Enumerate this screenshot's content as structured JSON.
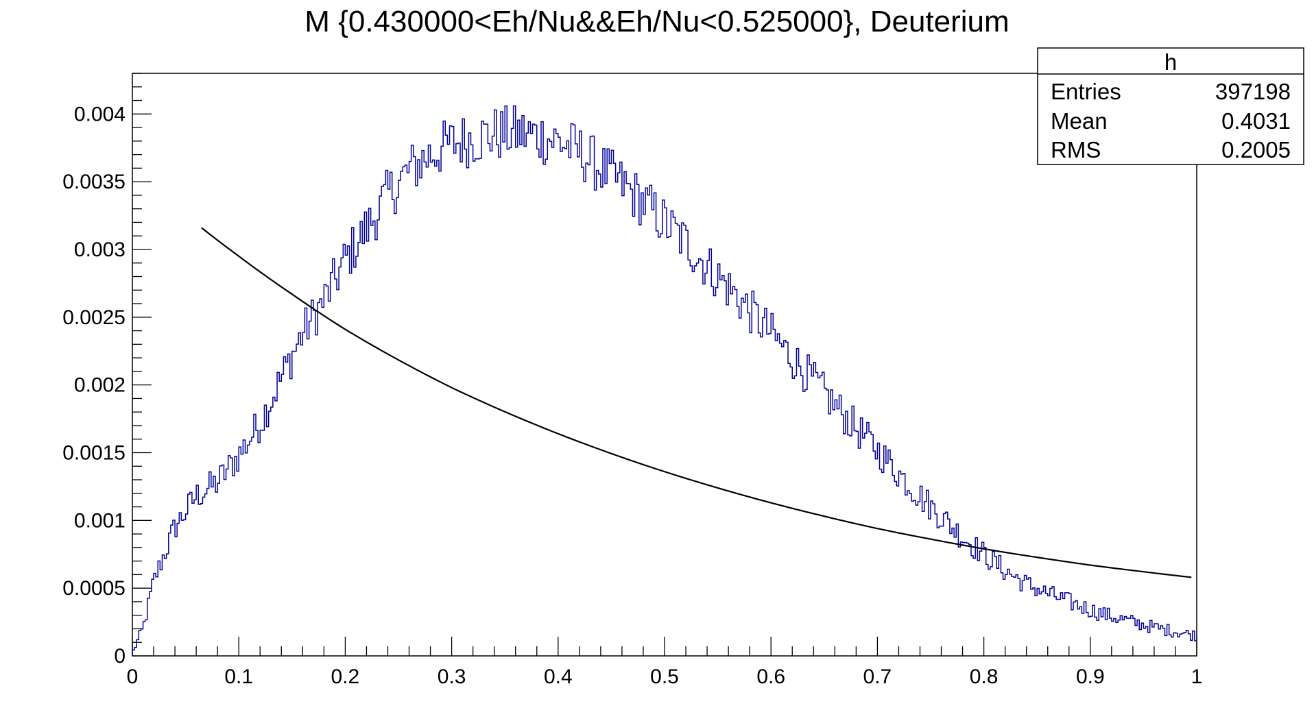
{
  "chart_data": {
    "type": "line",
    "title": "M {0.430000<Eh/Nu&&Eh/Nu<0.525000}, Deuterium",
    "xlabel": "",
    "ylabel": "",
    "xlim": [
      0,
      1
    ],
    "ylim": [
      0,
      0.0043
    ],
    "grid": false,
    "x_ticks": [
      "0",
      "0.1",
      "0.2",
      "0.3",
      "0.4",
      "0.5",
      "0.6",
      "0.7",
      "0.8",
      "0.9",
      "1"
    ],
    "y_ticks": [
      "0",
      "0.0005",
      "0.001",
      "0.0015",
      "0.002",
      "0.0025",
      "0.003",
      "0.0035",
      "0.004"
    ],
    "x_tick_values": [
      0,
      0.1,
      0.2,
      0.3,
      0.4,
      0.5,
      0.6,
      0.7,
      0.8,
      0.9,
      1
    ],
    "y_tick_values": [
      0,
      0.0005,
      0.001,
      0.0015,
      0.002,
      0.0025,
      0.003,
      0.0035,
      0.004
    ],
    "stats_box": {
      "name": "h",
      "rows": [
        {
          "label": "Entries",
          "value": "397198"
        },
        {
          "label": "Mean",
          "value": "0.4031"
        },
        {
          "label": "RMS",
          "value": "0.2005"
        }
      ]
    },
    "histogram_envelope": {
      "bins": 500,
      "x": [
        0,
        0.01,
        0.02,
        0.04,
        0.06,
        0.08,
        0.1,
        0.12,
        0.14,
        0.16,
        0.18,
        0.2,
        0.22,
        0.24,
        0.26,
        0.28,
        0.3,
        0.32,
        0.34,
        0.36,
        0.38,
        0.4,
        0.42,
        0.44,
        0.46,
        0.48,
        0.5,
        0.52,
        0.54,
        0.56,
        0.58,
        0.6,
        0.62,
        0.64,
        0.66,
        0.68,
        0.7,
        0.72,
        0.74,
        0.76,
        0.78,
        0.8,
        0.82,
        0.84,
        0.86,
        0.88,
        0.9,
        0.92,
        0.94,
        0.96,
        0.98,
        1.0
      ],
      "y": [
        2e-05,
        0.0002,
        0.00055,
        0.00095,
        0.00118,
        0.00128,
        0.00148,
        0.00172,
        0.00205,
        0.00238,
        0.00262,
        0.00292,
        0.00315,
        0.0034,
        0.00358,
        0.0037,
        0.00378,
        0.00382,
        0.00385,
        0.00386,
        0.00384,
        0.0038,
        0.00372,
        0.0036,
        0.00348,
        0.00335,
        0.0032,
        0.00305,
        0.00288,
        0.00272,
        0.00255,
        0.00238,
        0.0022,
        0.00203,
        0.00185,
        0.00168,
        0.00152,
        0.00135,
        0.00118,
        0.00103,
        0.00088,
        0.00075,
        0.00063,
        0.00053,
        0.00046,
        0.0004,
        0.00034,
        0.00029,
        0.00025,
        0.00021,
        0.00018,
        0.00015
      ]
    },
    "series": [
      {
        "color": "#000099",
        "kind": "histogram"
      },
      {
        "color": "#000000",
        "kind": "function",
        "x": [
          0.065,
          0.1,
          0.15,
          0.2,
          0.3,
          0.4,
          0.5,
          0.6,
          0.7,
          0.8,
          0.9,
          0.995
        ],
        "y": [
          0.00316,
          0.00295,
          0.00267,
          0.00241,
          0.00198,
          0.00164,
          0.00136,
          0.00113,
          0.00094,
          0.00079,
          0.00067,
          0.00058
        ]
      }
    ]
  }
}
